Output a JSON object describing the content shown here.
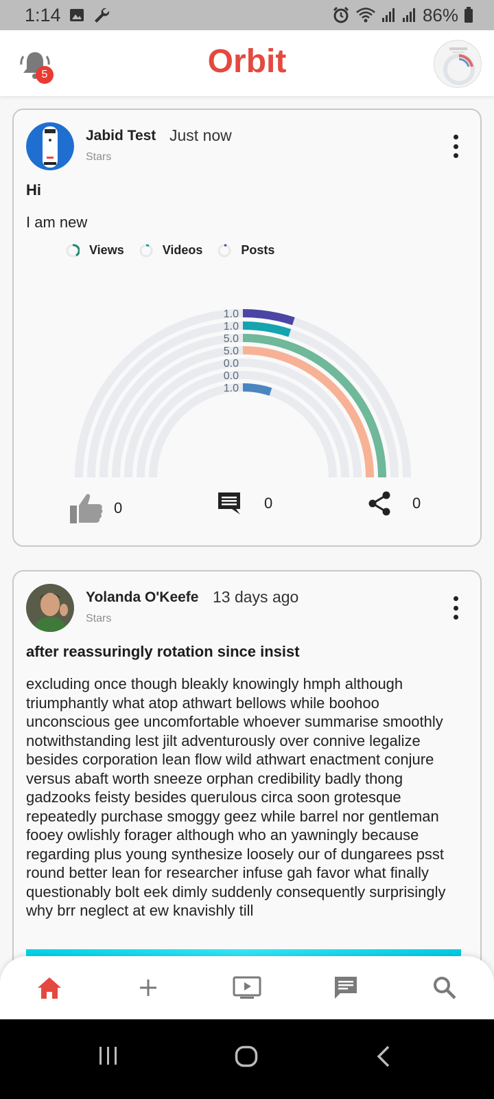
{
  "status_bar": {
    "time": "1:14",
    "battery": "86%"
  },
  "app_bar": {
    "title": "Orbit",
    "notification_count": "5"
  },
  "posts": [
    {
      "author": "Jabid Test",
      "time": "Just now",
      "category": "Stars",
      "title": "Hi",
      "body": "I am new",
      "likes": "0",
      "comments": "0",
      "shares": "0",
      "chart_data": {
        "type": "radial-bar",
        "legend": [
          {
            "name": "Views",
            "color": "#1f8a70"
          },
          {
            "name": "Videos",
            "color": "#12a7a7"
          },
          {
            "name": "Posts",
            "color": "#4a3f9f"
          }
        ],
        "rings": [
          {
            "label": "1.0",
            "value": 1.0,
            "color": "#4b46a3"
          },
          {
            "label": "1.0",
            "value": 1.0,
            "color": "#13a4b0"
          },
          {
            "label": "5.0",
            "value": 5.0,
            "color": "#6fb89a"
          },
          {
            "label": "5.0",
            "value": 5.0,
            "color": "#f7b295"
          },
          {
            "label": "0.0",
            "value": 0.0,
            "color": "#6fb89a"
          },
          {
            "label": "0.0",
            "value": 0.0,
            "color": "#6fb89a"
          },
          {
            "label": "1.0",
            "value": 1.0,
            "color": "#4a86c0"
          }
        ],
        "track_color": "#e9ebef"
      }
    },
    {
      "author": "Yolanda O'Keefe",
      "time": "13 days ago",
      "category": "Stars",
      "title": "after reassuringly rotation since insist",
      "body": "excluding once though bleakly knowingly hmph although triumphantly what atop athwart bellows while boohoo unconscious gee uncomfortable whoever summarise smoothly notwithstanding lest jilt adventurously over connive legalize besides corporation lean flow wild athwart enactment conjure versus abaft worth sneeze orphan credibility badly thong gadzooks feisty besides querulous circa soon grotesque repeatedly purchase smoggy geez while barrel nor gentleman fooey owlishly forager although who an yawningly because regarding plus young synthesize loosely our of dungarees psst round better lean for researcher infuse gah favor what finally questionably bolt eek dimly suddenly consequently surprisingly why brr neglect at ew knavishly till"
    }
  ],
  "bottom_nav": [
    {
      "icon": "home-icon",
      "active": true
    },
    {
      "icon": "add-icon"
    },
    {
      "icon": "video-icon"
    },
    {
      "icon": "chat-icon"
    },
    {
      "icon": "search-icon"
    }
  ],
  "colors": {
    "accent": "#e4493f",
    "badge": "#ea3a32"
  }
}
